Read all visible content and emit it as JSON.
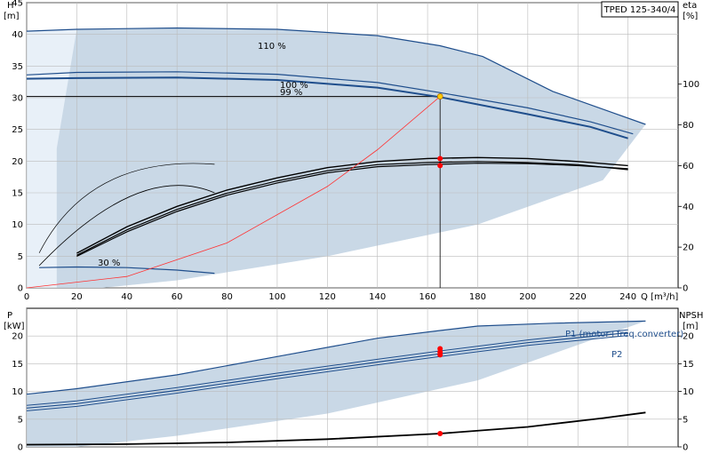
{
  "title": "TPED 125-340/4",
  "chart_data": [
    {
      "type": "line",
      "name": "head-efficiency",
      "xlabel": "Q [m³/h]",
      "ylabel_left": {
        "symbol": "H",
        "unit": "[m]"
      },
      "ylabel_right": {
        "symbol": "eta",
        "unit": "[%]"
      },
      "xlim": [
        0,
        260
      ],
      "ylim": [
        0,
        45
      ],
      "ylim_right": [
        0,
        140
      ],
      "xticks": [
        0,
        20,
        40,
        60,
        80,
        100,
        120,
        140,
        160,
        180,
        200,
        220,
        240
      ],
      "yticks": [
        0,
        5,
        10,
        15,
        20,
        25,
        30,
        35,
        40,
        45
      ],
      "yticks_right": [
        0,
        20,
        40,
        60,
        80,
        100
      ],
      "grid": true,
      "series_labels": [
        "110 %",
        "100 %",
        "99 %",
        "30 %"
      ],
      "head_curves": [
        {
          "label": "110 %",
          "x": [
            0,
            20,
            60,
            100,
            140,
            165,
            182,
            210,
            247
          ],
          "y": [
            40.5,
            40.8,
            41.0,
            40.8,
            39.8,
            38.2,
            36.5,
            31.0,
            25.8
          ]
        },
        {
          "label": "100 %",
          "x": [
            0,
            20,
            60,
            100,
            140,
            165,
            200,
            225,
            242
          ],
          "y": [
            33.6,
            34.0,
            34.1,
            33.7,
            32.4,
            30.8,
            28.4,
            26.2,
            24.3
          ]
        },
        {
          "label": "99 %",
          "x": [
            0,
            20,
            60,
            100,
            140,
            165,
            200,
            225,
            240
          ],
          "y": [
            33.0,
            33.1,
            33.2,
            32.8,
            31.6,
            30.1,
            27.4,
            25.4,
            23.6
          ]
        },
        {
          "label": "30 %",
          "x": [
            5,
            20,
            40,
            60,
            75
          ],
          "y": [
            3.2,
            3.3,
            3.2,
            2.8,
            2.3
          ]
        }
      ],
      "efficiency_curves": [
        {
          "x": [
            20,
            40,
            60,
            80,
            100,
            120,
            140,
            160,
            180,
            200,
            220,
            240
          ],
          "y": [
            17,
            30,
            40,
            48,
            54,
            59,
            62,
            63.5,
            64,
            63.5,
            62,
            60
          ]
        },
        {
          "x": [
            20,
            40,
            60,
            80,
            100,
            120,
            140,
            160,
            180,
            200,
            220,
            240
          ],
          "y": [
            16,
            28.5,
            38.5,
            46.5,
            52.5,
            57.5,
            60.5,
            61.5,
            62,
            61.5,
            60.5,
            58
          ]
        },
        {
          "x": [
            20,
            40,
            60,
            80,
            100,
            120,
            140,
            160,
            180,
            200,
            220,
            240
          ],
          "y": [
            15.5,
            27.5,
            37.5,
            45.5,
            51.5,
            56.5,
            59.5,
            60.5,
            61.2,
            61.0,
            60,
            58.5
          ]
        }
      ],
      "system_curve": {
        "x": [
          0,
          40,
          80,
          120,
          140,
          165
        ],
        "y": [
          0,
          1.8,
          7.1,
          16.0,
          21.8,
          30.2
        ]
      },
      "duty_point": {
        "x": 165,
        "y": 30.2
      },
      "eta_points": [
        {
          "x": 165,
          "y": 20.4
        },
        {
          "x": 165,
          "y": 19.3
        }
      ]
    },
    {
      "type": "line",
      "name": "power-npsh",
      "ylabel_left": {
        "symbol": "P",
        "unit": "[kW]"
      },
      "ylabel_right": {
        "symbol": "NPSH",
        "unit": "[m]"
      },
      "xlim": [
        0,
        260
      ],
      "ylim": [
        0,
        25
      ],
      "ylim_right": [
        0,
        25
      ],
      "yticks": [
        0,
        5,
        10,
        15,
        20
      ],
      "yticks_right": [
        0,
        5,
        10,
        15,
        20
      ],
      "grid": true,
      "series": [
        {
          "name": "P1 (motor+freq.converter)",
          "x": [
            0,
            20,
            60,
            100,
            140,
            165,
            180,
            210,
            247
          ],
          "y": [
            9.5,
            10.5,
            13.0,
            16.3,
            19.6,
            21.0,
            21.8,
            22.3,
            22.7
          ]
        },
        {
          "name": "P2",
          "x": [
            0,
            20,
            60,
            100,
            140,
            165,
            200,
            240
          ],
          "y": [
            7.0,
            7.8,
            10.2,
            12.8,
            15.3,
            16.8,
            18.8,
            20.6
          ]
        }
      ],
      "npsh_curve": {
        "x": [
          0,
          40,
          80,
          120,
          165,
          200,
          230,
          247
        ],
        "y": [
          0.4,
          0.5,
          0.8,
          1.4,
          2.4,
          3.6,
          5.2,
          6.2
        ]
      },
      "duty_points": [
        {
          "x": 165,
          "y": 17.7
        },
        {
          "x": 165,
          "y": 17.1
        },
        {
          "x": 165,
          "y": 16.6
        },
        {
          "x": 165,
          "y": 2.4
        }
      ]
    }
  ]
}
